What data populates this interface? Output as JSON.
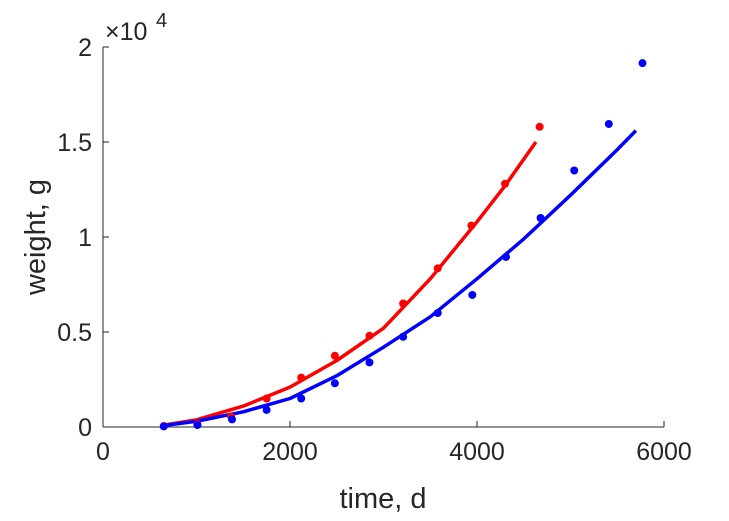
{
  "chart_data": {
    "type": "scatter",
    "xlabel": "time, d",
    "ylabel": "weight, g",
    "xlim": [
      0,
      6000
    ],
    "ylim": [
      0,
      20000
    ],
    "x_ticks": [
      0,
      2000,
      4000,
      6000
    ],
    "x_tick_labels": [
      "0",
      "2000",
      "4000",
      "6000"
    ],
    "y_ticks": [
      0,
      5000,
      10000,
      15000,
      20000
    ],
    "y_tick_labels": [
      "0",
      "0.5",
      "1",
      "1.5",
      "2"
    ],
    "y_exponent": {
      "base": "×10",
      "power": "4"
    },
    "grid": false,
    "series": [
      {
        "color": "#ff0000",
        "points": [
          {
            "x": 650,
            "y": 50
          },
          {
            "x": 1010,
            "y": 150
          },
          {
            "x": 1370,
            "y": 550
          },
          {
            "x": 1750,
            "y": 1500
          },
          {
            "x": 2120,
            "y": 2600
          },
          {
            "x": 2480,
            "y": 3750
          },
          {
            "x": 2850,
            "y": 4800
          },
          {
            "x": 3210,
            "y": 6500
          },
          {
            "x": 3580,
            "y": 8350
          },
          {
            "x": 3940,
            "y": 10600
          },
          {
            "x": 4300,
            "y": 12800
          },
          {
            "x": 4670,
            "y": 15800
          }
        ],
        "fit": [
          {
            "x": 650,
            "y": 100
          },
          {
            "x": 1000,
            "y": 380
          },
          {
            "x": 1500,
            "y": 1100
          },
          {
            "x": 2000,
            "y": 2100
          },
          {
            "x": 2500,
            "y": 3500
          },
          {
            "x": 3000,
            "y": 5200
          },
          {
            "x": 3500,
            "y": 7800
          },
          {
            "x": 4000,
            "y": 10800
          },
          {
            "x": 4300,
            "y": 12700
          },
          {
            "x": 4630,
            "y": 15000
          }
        ]
      },
      {
        "color": "#0000ff",
        "points": [
          {
            "x": 650,
            "y": 30
          },
          {
            "x": 1010,
            "y": 100
          },
          {
            "x": 1380,
            "y": 400
          },
          {
            "x": 1750,
            "y": 900
          },
          {
            "x": 2120,
            "y": 1500
          },
          {
            "x": 2480,
            "y": 2300
          },
          {
            "x": 2850,
            "y": 3400
          },
          {
            "x": 3210,
            "y": 4750
          },
          {
            "x": 3580,
            "y": 6000
          },
          {
            "x": 3950,
            "y": 6950
          },
          {
            "x": 4310,
            "y": 8950
          },
          {
            "x": 4680,
            "y": 11000
          },
          {
            "x": 5040,
            "y": 13500
          },
          {
            "x": 5410,
            "y": 15950
          },
          {
            "x": 5770,
            "y": 19150
          }
        ],
        "fit": [
          {
            "x": 650,
            "y": 80
          },
          {
            "x": 1000,
            "y": 300
          },
          {
            "x": 1500,
            "y": 800
          },
          {
            "x": 2000,
            "y": 1500
          },
          {
            "x": 2500,
            "y": 2700
          },
          {
            "x": 3000,
            "y": 4200
          },
          {
            "x": 3500,
            "y": 5800
          },
          {
            "x": 4000,
            "y": 7800
          },
          {
            "x": 4500,
            "y": 9900
          },
          {
            "x": 5000,
            "y": 12200
          },
          {
            "x": 5500,
            "y": 14600
          },
          {
            "x": 5700,
            "y": 15600
          }
        ]
      }
    ]
  }
}
